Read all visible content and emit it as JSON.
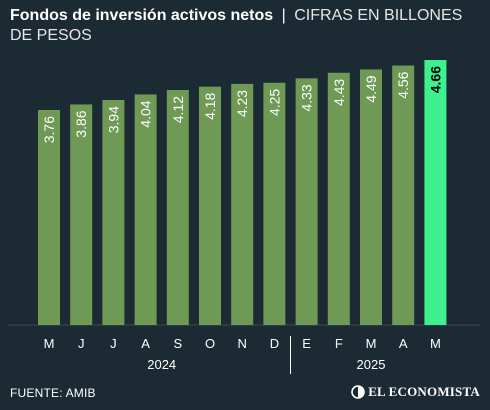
{
  "header": {
    "title": "Fondos de inversión activos netos",
    "separator": "|",
    "subtitle": "CIFRAS EN BILLONES DE PESOS"
  },
  "footer": {
    "source": "FUENTE: AMIB",
    "logo_text": "EL ECONOMISTA",
    "logo_icon": "el-economista-logo-icon"
  },
  "colors": {
    "background": "#1c2a33",
    "bar": "#6f9a56",
    "bar_highlight": "#3ef08e",
    "label_light": "#ffffff",
    "label_dark": "#000000"
  },
  "chart_data": {
    "type": "bar",
    "categories": [
      "M",
      "J",
      "J",
      "A",
      "S",
      "O",
      "N",
      "D",
      "E",
      "F",
      "M",
      "A",
      "M"
    ],
    "values": [
      3.76,
      3.86,
      3.94,
      4.04,
      4.12,
      4.18,
      4.23,
      4.25,
      4.33,
      4.43,
      4.49,
      4.56,
      4.66
    ],
    "value_labels": [
      "3.76",
      "3.86",
      "3.94",
      "4.04",
      "4.12",
      "4.18",
      "4.23",
      "4.25",
      "4.33",
      "4.43",
      "4.49",
      "4.56",
      "4.66"
    ],
    "highlight_index": 12,
    "year_groups": [
      {
        "label": "2024",
        "start": 0,
        "end": 7
      },
      {
        "label": "2025",
        "start": 8,
        "end": 12
      }
    ],
    "title": "Fondos de inversión activos netos",
    "subtitle": "CIFRAS EN BILLONES DE PESOS",
    "xlabel": "",
    "ylabel": "",
    "grid": false,
    "legend": "none"
  }
}
